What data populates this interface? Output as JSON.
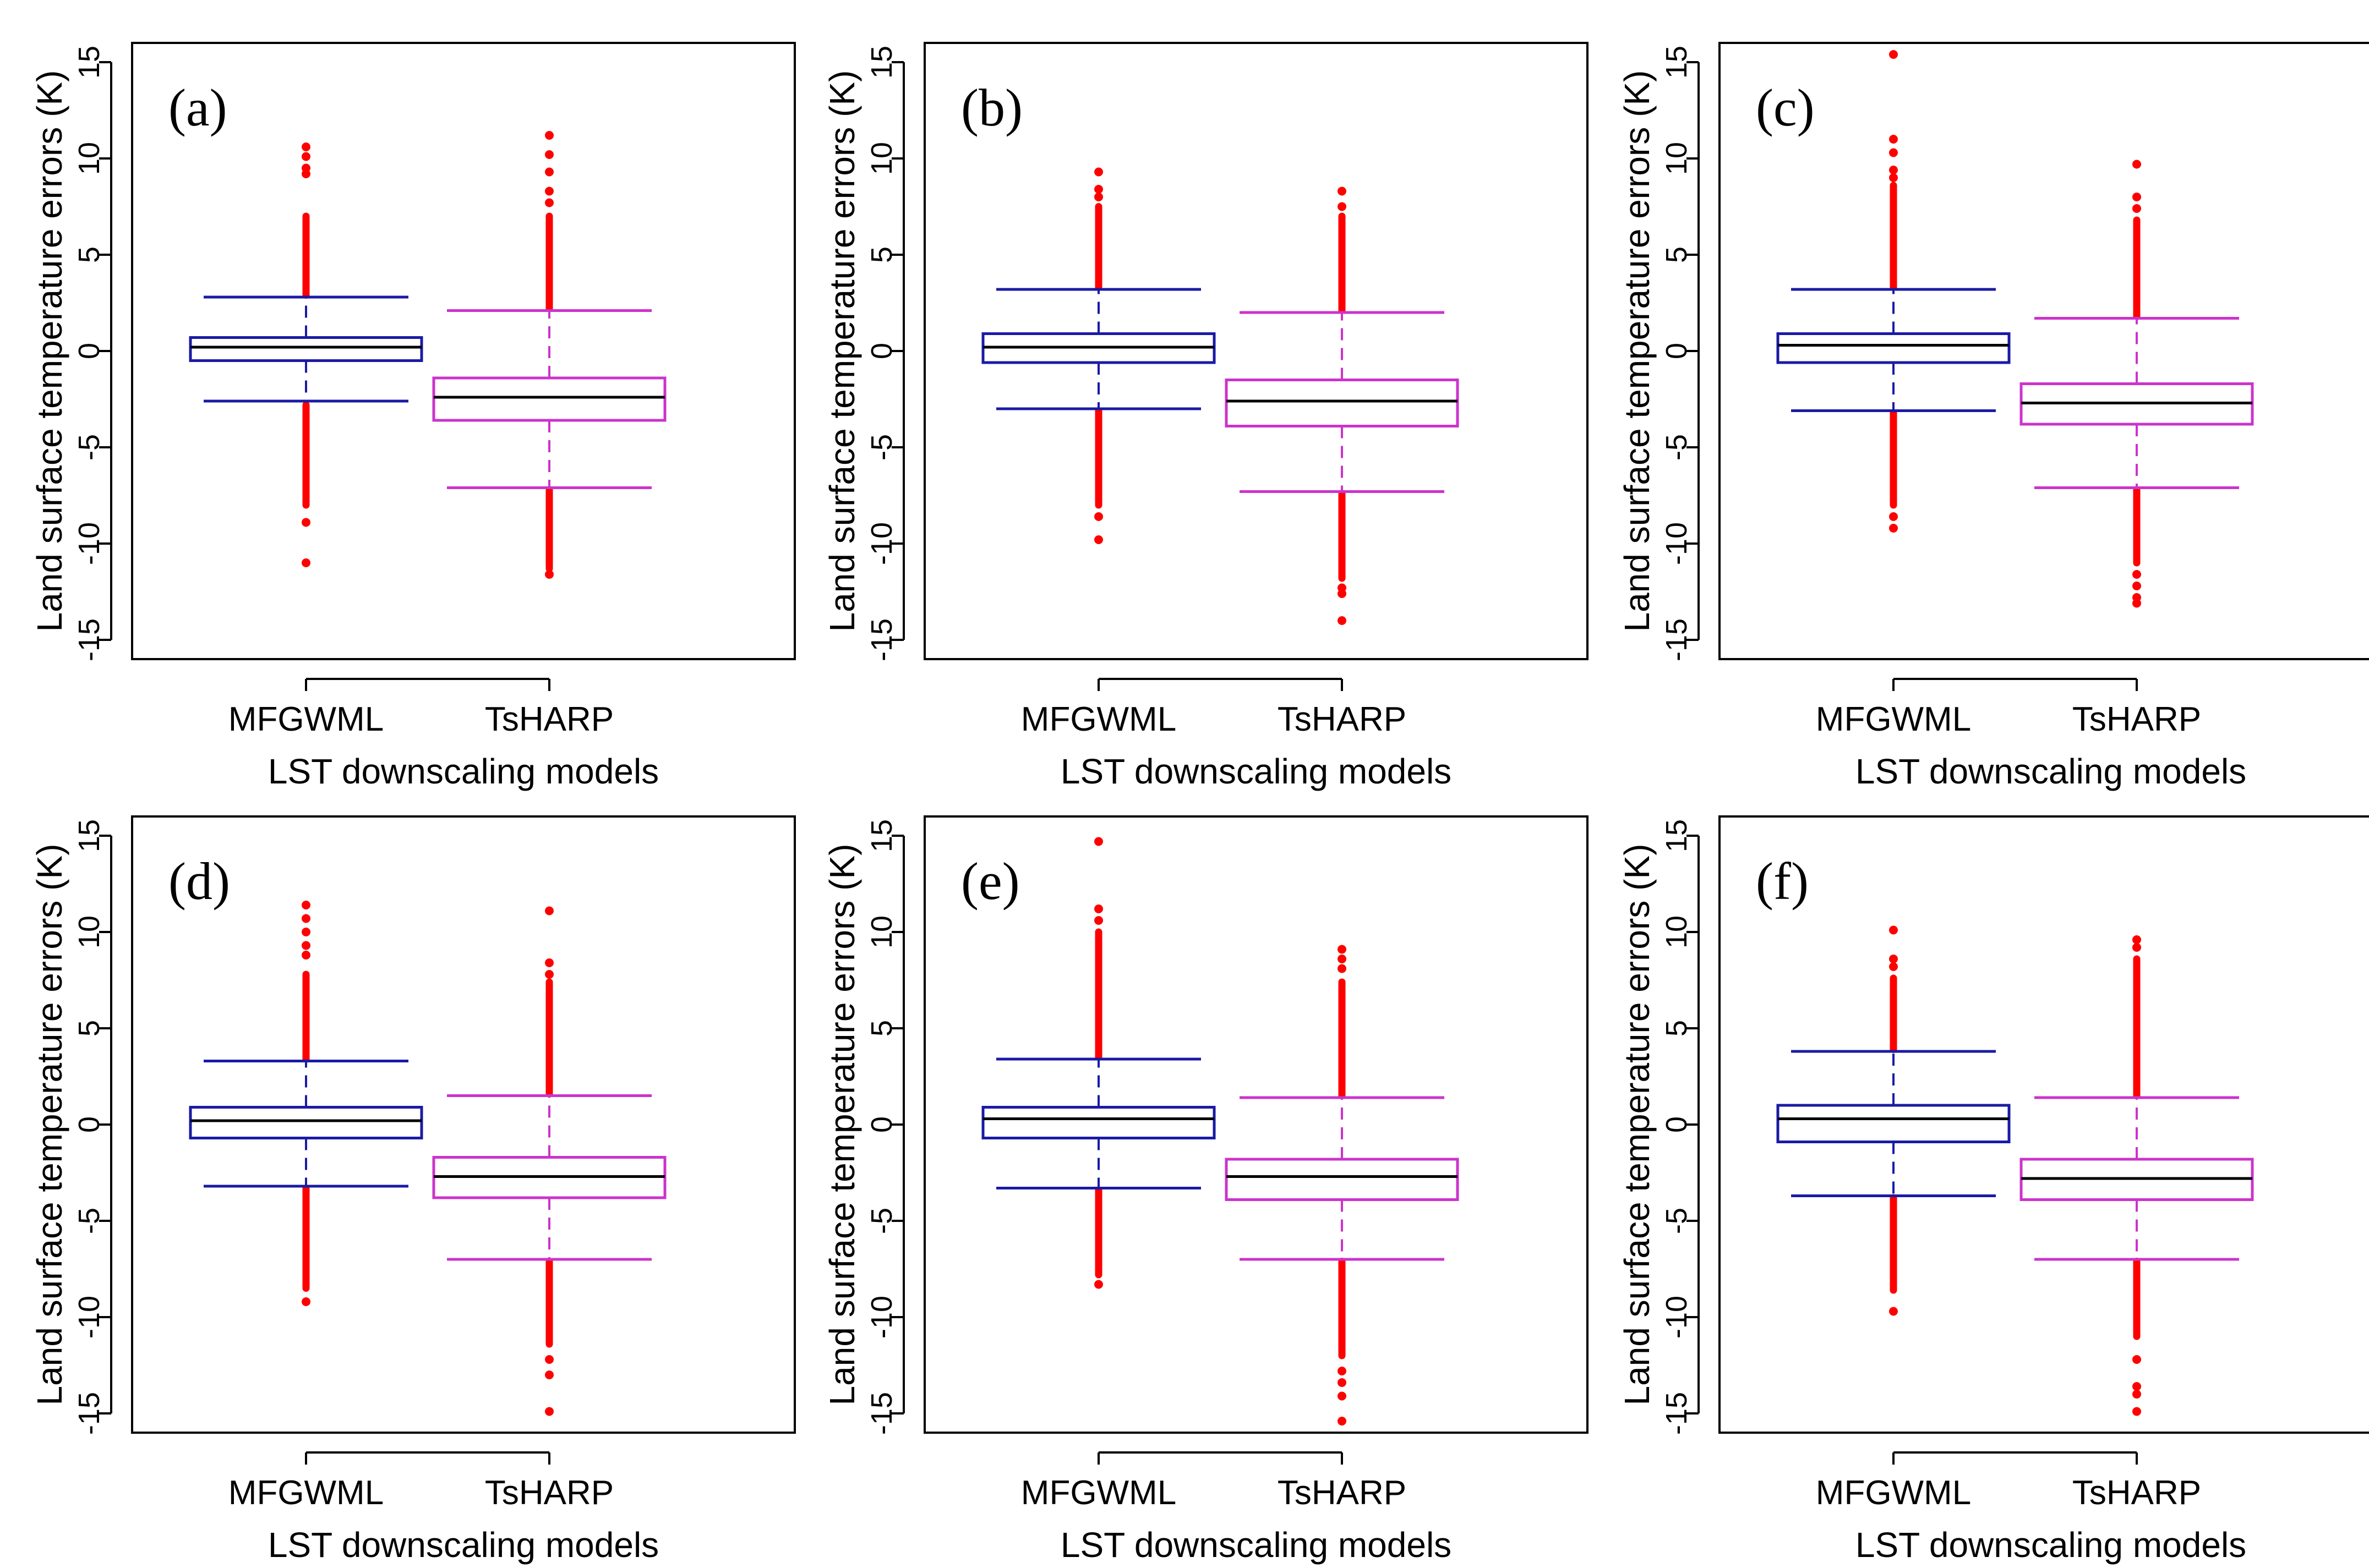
{
  "figure": {
    "boxes": {
      "median_color": "#000000",
      "outlier_color": "#ff0000",
      "model_colors": [
        "#1a1aa6",
        "#cc33cc"
      ]
    }
  },
  "chart_data": [
    {
      "type": "box",
      "panel_label": "(a)",
      "title": "",
      "xlabel": "LST downscaling models",
      "ylabel": "Land surface temperature errors (K)",
      "ylim": [
        -16,
        16
      ],
      "yticks": [
        -15,
        -10,
        -5,
        0,
        5,
        10,
        15
      ],
      "categories": [
        "MFGWML",
        "TsHARP"
      ],
      "boxes": [
        {
          "name": "MFGWML",
          "min": -2.6,
          "q1": -0.5,
          "median": 0.2,
          "q3": 0.7,
          "max": 2.8,
          "outlier_low": [
            -2.8,
            -8.0
          ],
          "outlier_high": [
            2.9,
            7.0
          ],
          "outliers": [
            -8.9,
            -11.0,
            9.2,
            9.5,
            10.1,
            10.6
          ]
        },
        {
          "name": "TsHARP",
          "min": -7.1,
          "q1": -3.6,
          "median": -2.4,
          "q3": -1.4,
          "max": 2.1,
          "outlier_low": [
            -7.2,
            -11.3
          ],
          "outlier_high": [
            2.2,
            7.0
          ],
          "outliers": [
            -11.6,
            7.7,
            8.3,
            9.3,
            10.2,
            11.2
          ]
        }
      ]
    },
    {
      "type": "box",
      "panel_label": "(b)",
      "title": "",
      "xlabel": "LST downscaling models",
      "ylabel": "Land surface temperature errors (K)",
      "ylim": [
        -16,
        16
      ],
      "yticks": [
        -15,
        -10,
        -5,
        0,
        5,
        10,
        15
      ],
      "categories": [
        "MFGWML",
        "TsHARP"
      ],
      "boxes": [
        {
          "name": "MFGWML",
          "min": -3.0,
          "q1": -0.6,
          "median": 0.2,
          "q3": 0.9,
          "max": 3.2,
          "outlier_low": [
            -3.1,
            -8.0
          ],
          "outlier_high": [
            3.3,
            7.5
          ],
          "outliers": [
            -8.6,
            -9.8,
            8.0,
            8.4,
            9.3
          ]
        },
        {
          "name": "TsHARP",
          "min": -7.3,
          "q1": -3.9,
          "median": -2.6,
          "q3": -1.5,
          "max": 2.0,
          "outlier_low": [
            -7.4,
            -11.8
          ],
          "outlier_high": [
            2.1,
            7.0
          ],
          "outliers": [
            -12.3,
            -12.6,
            -14.0,
            7.5,
            8.3
          ]
        }
      ]
    },
    {
      "type": "box",
      "panel_label": "(c)",
      "title": "",
      "xlabel": "LST downscaling models",
      "ylabel": "Land surface temperature errors (K)",
      "ylim": [
        -16,
        16
      ],
      "yticks": [
        -15,
        -10,
        -5,
        0,
        5,
        10,
        15
      ],
      "categories": [
        "MFGWML",
        "TsHARP"
      ],
      "boxes": [
        {
          "name": "MFGWML",
          "min": -3.1,
          "q1": -0.6,
          "median": 0.3,
          "q3": 0.9,
          "max": 3.2,
          "outlier_low": [
            -3.2,
            -8.0
          ],
          "outlier_high": [
            3.3,
            8.6
          ],
          "outliers": [
            -8.6,
            -9.2,
            9.0,
            9.4,
            10.3,
            11.0,
            15.4
          ]
        },
        {
          "name": "TsHARP",
          "min": -7.1,
          "q1": -3.8,
          "median": -2.7,
          "q3": -1.7,
          "max": 1.7,
          "outlier_low": [
            -7.2,
            -11.0
          ],
          "outlier_high": [
            1.8,
            6.8
          ],
          "outliers": [
            -11.6,
            -12.2,
            -12.8,
            -13.1,
            7.4,
            8.0,
            9.7
          ]
        }
      ]
    },
    {
      "type": "box",
      "panel_label": "(d)",
      "title": "",
      "xlabel": "LST downscaling models",
      "ylabel": "Land surface temperature errors (K)",
      "ylim": [
        -16,
        16
      ],
      "yticks": [
        -15,
        -10,
        -5,
        0,
        5,
        10,
        15
      ],
      "categories": [
        "MFGWML",
        "TsHARP"
      ],
      "boxes": [
        {
          "name": "MFGWML",
          "min": -3.2,
          "q1": -0.7,
          "median": 0.2,
          "q3": 0.9,
          "max": 3.3,
          "outlier_low": [
            -3.3,
            -8.5
          ],
          "outlier_high": [
            3.4,
            7.8
          ],
          "outliers": [
            -9.2,
            8.8,
            9.3,
            10.0,
            10.7,
            11.4
          ]
        },
        {
          "name": "TsHARP",
          "min": -7.0,
          "q1": -3.8,
          "median": -2.7,
          "q3": -1.7,
          "max": 1.5,
          "outlier_low": [
            -7.1,
            -11.4
          ],
          "outlier_high": [
            1.6,
            7.4
          ],
          "outliers": [
            -12.2,
            -13.0,
            -14.9,
            7.8,
            8.4,
            11.1
          ]
        }
      ]
    },
    {
      "type": "box",
      "panel_label": "(e)",
      "title": "",
      "xlabel": "LST downscaling models",
      "ylabel": "Land surface temperature errors (K)",
      "ylim": [
        -16,
        16
      ],
      "yticks": [
        -15,
        -10,
        -5,
        0,
        5,
        10,
        15
      ],
      "categories": [
        "MFGWML",
        "TsHARP"
      ],
      "boxes": [
        {
          "name": "MFGWML",
          "min": -3.3,
          "q1": -0.7,
          "median": 0.3,
          "q3": 0.9,
          "max": 3.4,
          "outlier_low": [
            -3.4,
            -7.8
          ],
          "outlier_high": [
            3.5,
            10.0
          ],
          "outliers": [
            -8.3,
            10.6,
            11.2,
            14.7
          ]
        },
        {
          "name": "TsHARP",
          "min": -7.0,
          "q1": -3.9,
          "median": -2.7,
          "q3": -1.8,
          "max": 1.4,
          "outlier_low": [
            -7.1,
            -12.0
          ],
          "outlier_high": [
            1.5,
            7.4
          ],
          "outliers": [
            -12.8,
            -13.4,
            -14.1,
            -15.4,
            8.1,
            8.6,
            9.1
          ]
        }
      ]
    },
    {
      "type": "box",
      "panel_label": "(f)",
      "title": "",
      "xlabel": "LST downscaling models",
      "ylabel": "Land surface temperature errors (K)",
      "ylim": [
        -16,
        16
      ],
      "yticks": [
        -15,
        -10,
        -5,
        0,
        5,
        10,
        15
      ],
      "categories": [
        "MFGWML",
        "TsHARP"
      ],
      "boxes": [
        {
          "name": "MFGWML",
          "min": -3.7,
          "q1": -0.9,
          "median": 0.3,
          "q3": 1.0,
          "max": 3.8,
          "outlier_low": [
            -3.8,
            -8.6
          ],
          "outlier_high": [
            3.9,
            7.6
          ],
          "outliers": [
            -9.7,
            8.2,
            8.6,
            10.1
          ]
        },
        {
          "name": "TsHARP",
          "min": -7.0,
          "q1": -3.9,
          "median": -2.8,
          "q3": -1.8,
          "max": 1.4,
          "outlier_low": [
            -7.1,
            -11.0
          ],
          "outlier_high": [
            1.5,
            8.6
          ],
          "outliers": [
            -12.2,
            -13.6,
            -14.0,
            -14.9,
            9.2,
            9.6
          ]
        }
      ]
    }
  ]
}
